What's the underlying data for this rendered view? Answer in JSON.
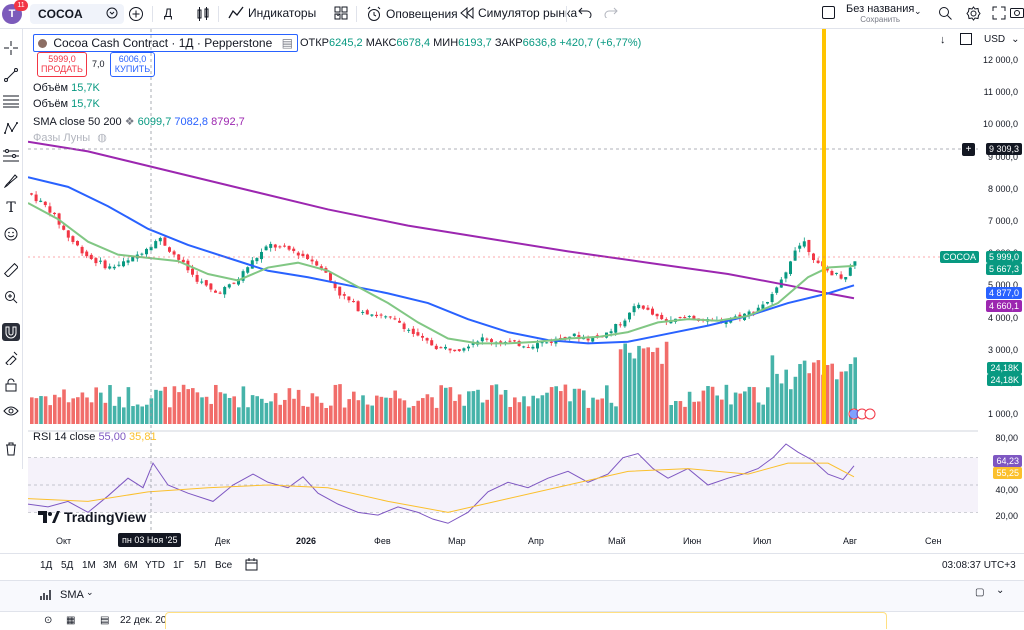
{
  "topbar": {
    "avatar_letter": "T",
    "avatar_badge": "11",
    "symbol": "COCOA",
    "interval": "Д",
    "indicators_label": "Индикаторы",
    "alerts_label": "Оповещения",
    "replay_label": "Симулятор рынка",
    "layout_name": "Без названия",
    "layout_status": "Сохранить"
  },
  "legend": {
    "title": "Cocoa Cash Contract · 1Д · Pepperstone",
    "open_key": "ОТКР",
    "open_val": "6245,2",
    "high_key": "МАКС",
    "high_val": "6678,4",
    "low_key": "МИН",
    "low_val": "6193,7",
    "close_key": "ЗАКР",
    "close_val": "6636,8",
    "change": "+420,7 (+6,77%)",
    "sell_price": "5999,0",
    "sell_label": "ПРОДАТЬ",
    "spread": "7,0",
    "buy_price": "6006,0",
    "buy_label": "КУПИТЬ",
    "volume1_label": "Объём",
    "volume1_val": "15,7K",
    "volume2_label": "Объём",
    "volume2_val": "15,7K",
    "sma_label": "SMA close 50 200",
    "sma_v1": "6099,7",
    "sma_v2": "7082,8",
    "sma_v3": "8792,7",
    "moon_label": "Фазы Луны",
    "rsi_label": "RSI 14 close",
    "rsi_v1": "55,00",
    "rsi_v2": "35,81"
  },
  "price_axis": {
    "currency": "USD",
    "ticks": [
      "12 000,0",
      "11 000,0",
      "10 000,0",
      "9 000,0",
      "8 000,0",
      "7 000,0",
      "6 000,0",
      "5 000,0",
      "4 000,0",
      "3 000,0",
      "2 000,0",
      "1 000,0"
    ],
    "crosshair_price": "9 309,3",
    "symbol_tag": "COCOA",
    "last_price": "5 999,0",
    "sma50_price": "5 667,3",
    "sma_blue_price": "4 877,0",
    "sma_purple_price": "4 660,1",
    "vol1": "24,18K",
    "vol2": "24,18K"
  },
  "rsi_axis": {
    "ticks": [
      "80,00",
      "40,00",
      "20,00"
    ],
    "rsi_val": "64,23",
    "rsi_ma": "55,25"
  },
  "time_axis": {
    "ticks": [
      "Окт",
      "Дек",
      "2026",
      "Фев",
      "Мар",
      "Апр",
      "Май",
      "Июн",
      "Июл",
      "Авг",
      "Сен"
    ],
    "hover_date": "пн 03 Ноя '25"
  },
  "bottom": {
    "ranges": [
      "1Д",
      "5Д",
      "1М",
      "3М",
      "6М",
      "YTD",
      "1Г",
      "5Л",
      "Все"
    ],
    "clock": "03:08:37 UTC+3"
  },
  "panel": {
    "title": "SMA",
    "row_text": "22 дек. 20"
  },
  "watermark": "TradingView",
  "colors": {
    "up": "#089981",
    "down": "#f23645",
    "sma50": "#81c784",
    "sma_blue": "#2962ff",
    "sma_purple": "#9c27b0",
    "highlight": "#ffc400"
  }
}
